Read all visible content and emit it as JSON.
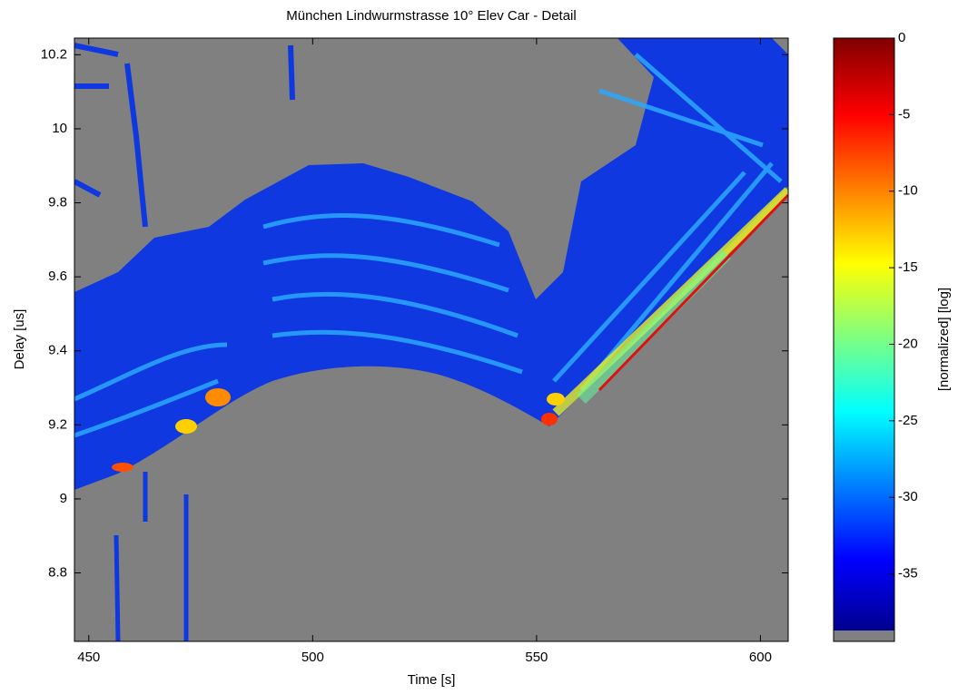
{
  "chart_data": {
    "type": "heatmap",
    "title": "München Lindwurmstrasse 10° Elev Car - Detail",
    "x_label": "Time [s]",
    "y_label": "Delay [us]",
    "xlim": [
      446.8,
      606.2
    ],
    "xticks": [
      450,
      500,
      550,
      600
    ],
    "ylim": [
      8.615,
      10.245
    ],
    "yticks": [
      8.8,
      9,
      9.2,
      9.4,
      9.6,
      9.8,
      10,
      10.2
    ],
    "background_color": "#808080",
    "colorbar": {
      "label": "[normalized] [log]",
      "lim": [
        -38.7,
        0
      ],
      "ticks": [
        0,
        -5,
        -10,
        -15,
        -20,
        -25,
        -30,
        -35
      ],
      "colormap": "jet"
    }
  }
}
